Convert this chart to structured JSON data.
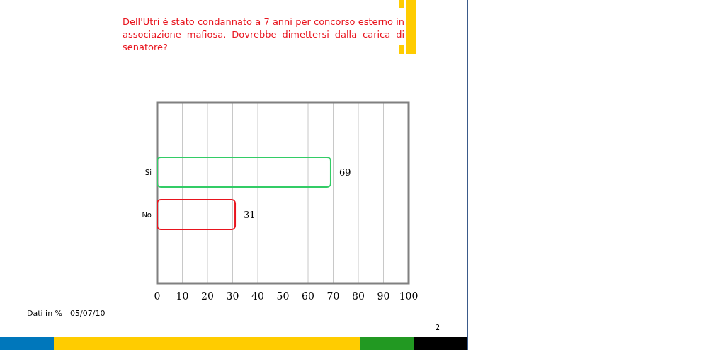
{
  "chart_data": {
    "type": "bar",
    "orientation": "horizontal",
    "title": "Dell'Utri è  stato condannato a 7 anni per concorso esterno in associazione mafiosa. Dovrebbe dimettersi dalla carica di senatore?",
    "categories": [
      "Si",
      "No"
    ],
    "values": [
      69,
      31
    ],
    "colors": [
      "#33cc66",
      "#e8141e"
    ],
    "xlim": [
      0,
      100
    ],
    "xticks": [
      0,
      10,
      20,
      30,
      40,
      50,
      60,
      70,
      80,
      90,
      100
    ],
    "grid": "x",
    "data_labels": true,
    "annotations": [
      "Dati in % - 05/07/10",
      "2"
    ]
  }
}
